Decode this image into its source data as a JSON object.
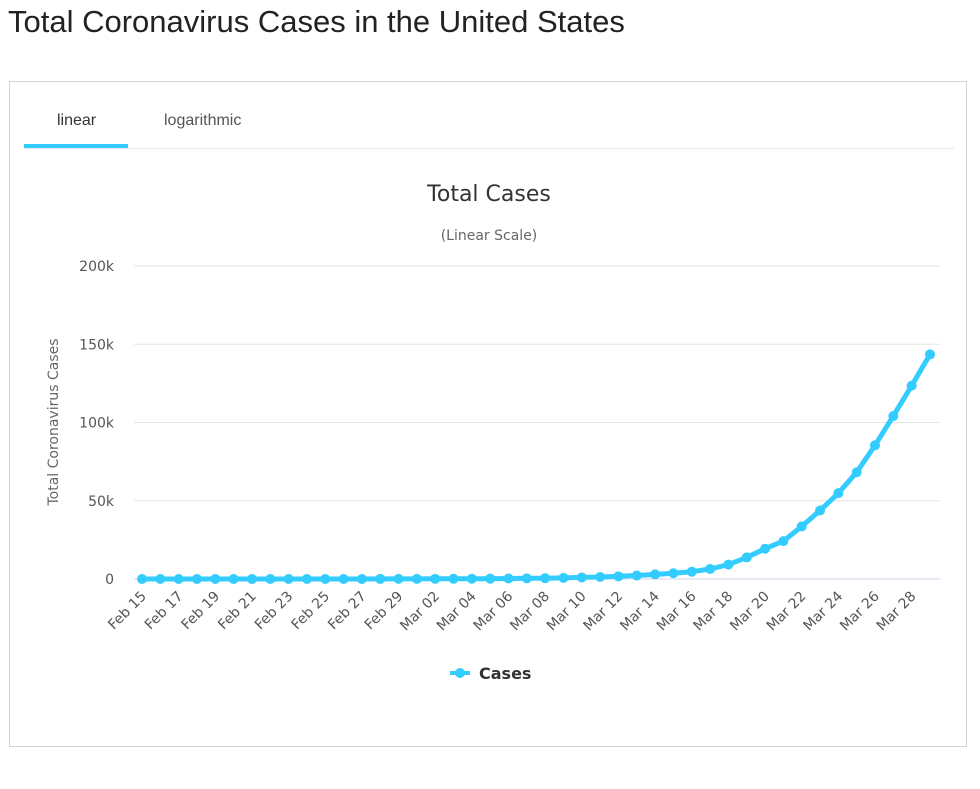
{
  "page": {
    "title": "Total Coronavirus Cases in the United States"
  },
  "tabs": [
    {
      "label": "linear",
      "active": true
    },
    {
      "label": "logarithmic",
      "active": false
    }
  ],
  "colors": {
    "series": "#33ccff",
    "tab_underline": "#33ccff"
  },
  "chart_data": {
    "type": "line",
    "title": "Total Cases",
    "subtitle": "(Linear Scale)",
    "xlabel": "",
    "ylabel": "Total Coronavirus Cases",
    "ylim": [
      0,
      200000
    ],
    "yticks": [
      0,
      50000,
      100000,
      150000,
      200000
    ],
    "ytick_labels": [
      "0",
      "50k",
      "100k",
      "150k",
      "200k"
    ],
    "grid": true,
    "legend": "bottom-center",
    "x": [
      "Feb 15",
      "Feb 16",
      "Feb 17",
      "Feb 18",
      "Feb 19",
      "Feb 20",
      "Feb 21",
      "Feb 22",
      "Feb 23",
      "Feb 24",
      "Feb 25",
      "Feb 26",
      "Feb 27",
      "Feb 28",
      "Feb 29",
      "Mar 01",
      "Mar 02",
      "Mar 03",
      "Mar 04",
      "Mar 05",
      "Mar 06",
      "Mar 07",
      "Mar 08",
      "Mar 09",
      "Mar 10",
      "Mar 11",
      "Mar 12",
      "Mar 13",
      "Mar 14",
      "Mar 15",
      "Mar 16",
      "Mar 17",
      "Mar 18",
      "Mar 19",
      "Mar 20",
      "Mar 21",
      "Mar 22",
      "Mar 23",
      "Mar 24",
      "Mar 25",
      "Mar 26",
      "Mar 27",
      "Mar 28",
      "Mar 29"
    ],
    "xtick_labels": [
      "Feb 15",
      "Feb 17",
      "Feb 19",
      "Feb 21",
      "Feb 23",
      "Feb 25",
      "Feb 27",
      "Feb 29",
      "Mar 02",
      "Mar 04",
      "Mar 06",
      "Mar 08",
      "Mar 10",
      "Mar 12",
      "Mar 14",
      "Mar 16",
      "Mar 18",
      "Mar 20",
      "Mar 22",
      "Mar 24",
      "Mar 26",
      "Mar 28"
    ],
    "series": [
      {
        "name": "Cases",
        "values": [
          15,
          15,
          15,
          15,
          15,
          15,
          15,
          15,
          15,
          15,
          15,
          15,
          16,
          60,
          68,
          74,
          100,
          124,
          158,
          221,
          319,
          435,
          541,
          704,
          994,
          1301,
          1697,
          2247,
          2943,
          3680,
          4663,
          6411,
          9197,
          13779,
          19367,
          24192,
          33592,
          43781,
          54856,
          68211,
          85435,
          104126,
          123578,
          143491
        ]
      }
    ]
  }
}
